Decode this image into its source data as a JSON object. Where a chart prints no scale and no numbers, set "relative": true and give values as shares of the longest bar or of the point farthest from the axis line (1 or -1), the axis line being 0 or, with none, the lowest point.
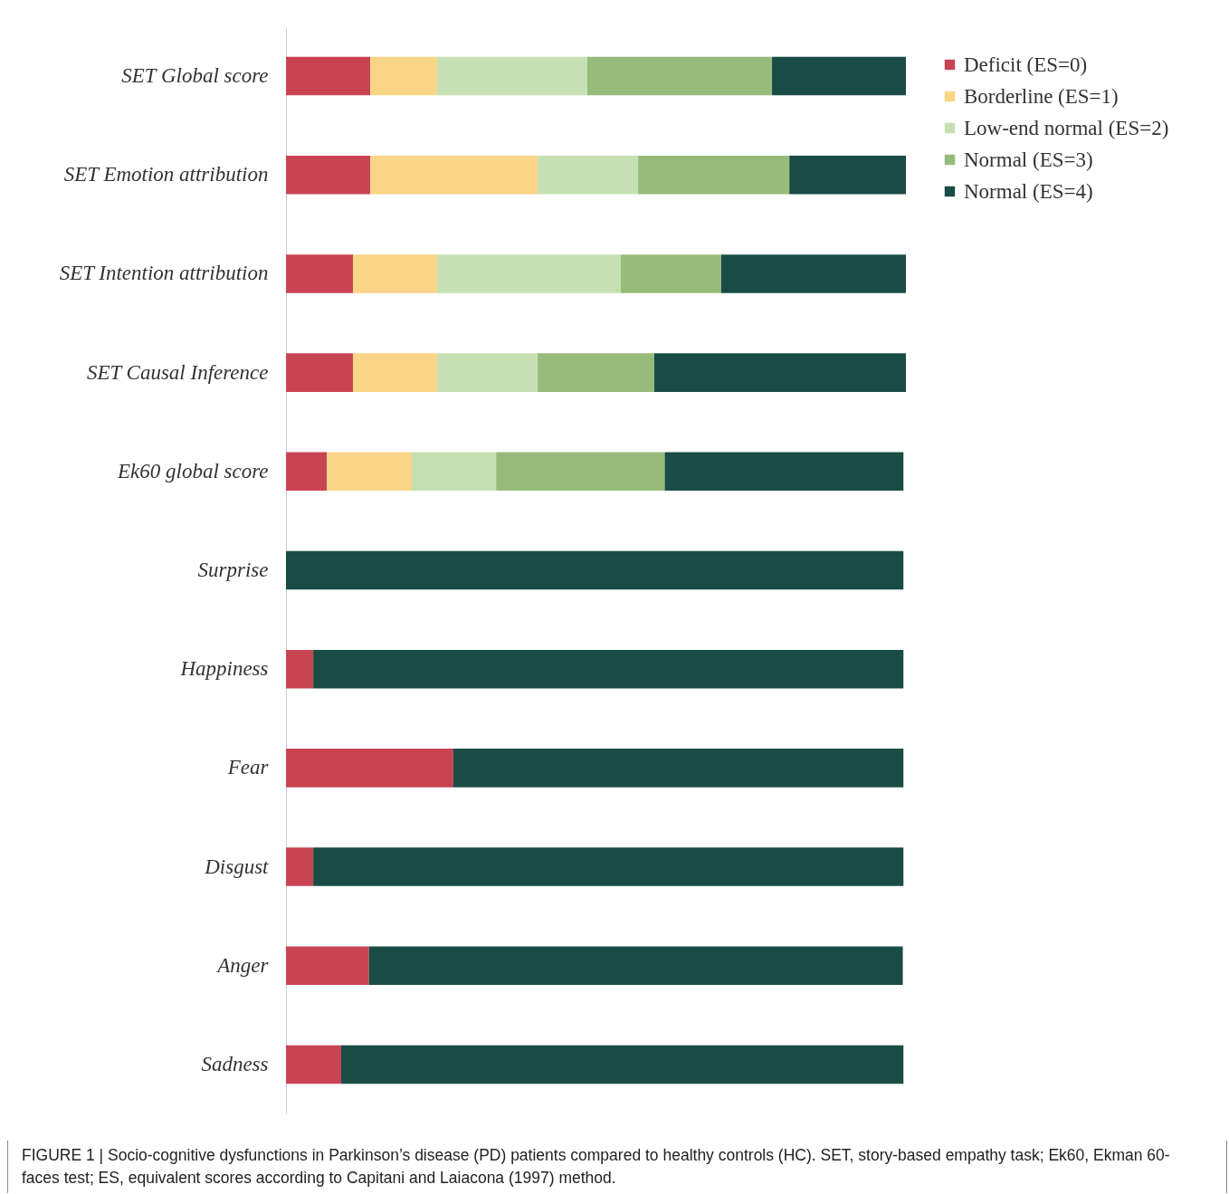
{
  "chart_data": {
    "type": "bar",
    "orientation": "horizontal",
    "stacked": true,
    "relative": true,
    "legend": "top right",
    "categories": [
      "SET Global score",
      "SET Emotion attribution",
      "SET Intention attribution",
      "SET Causal Inference",
      "Ek60 global score",
      "Surprise",
      "Happiness",
      "Fear",
      "Disgust",
      "Anger",
      "Sadness"
    ],
    "series": [
      {
        "name": "Deficit (ES=0)",
        "color": "#c94453",
        "values": [
          0.136,
          0.136,
          0.108,
          0.108,
          0.066,
          null,
          0.044,
          0.27,
          0.044,
          0.134,
          0.089
        ]
      },
      {
        "name": "Borderline (ES=1)",
        "color": "#f9d587",
        "values": [
          0.108,
          0.27,
          0.136,
          0.136,
          0.137,
          null,
          null,
          null,
          null,
          null,
          null
        ]
      },
      {
        "name": "Low-end normal (ES=2)",
        "color": "#c6e0b4",
        "values": [
          0.242,
          0.162,
          0.296,
          0.162,
          0.136,
          null,
          null,
          null,
          null,
          null,
          null
        ]
      },
      {
        "name": "Normal (ES=3)",
        "color": "#97bb7a",
        "values": [
          0.298,
          0.244,
          0.162,
          0.188,
          0.272,
          null,
          null,
          null,
          null,
          null,
          null
        ]
      },
      {
        "name": "Normal (ES=4)",
        "color": "#1a4c46",
        "values": [
          0.216,
          0.188,
          0.298,
          0.406,
          0.385,
          0.996,
          0.952,
          0.726,
          0.952,
          0.861,
          0.907
        ]
      }
    ],
    "annotations": [
      "FIGURE 1 | Socio-cognitive dysfunctions in Parkinson’s disease (PD) patients compared to healthy controls (HC). SET, story-based empathy task; Ek60, Ekman 60-faces test; ES, equivalent scores according to Capitani and Laiacona (1997) method."
    ]
  }
}
